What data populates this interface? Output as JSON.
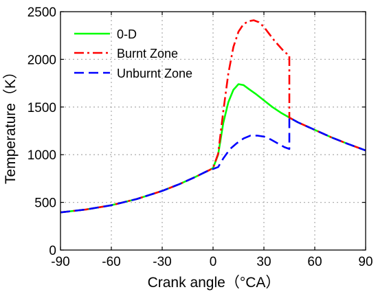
{
  "chart_data": {
    "type": "line",
    "title": "",
    "xlabel": "Crank angle（°CA）",
    "ylabel": "Temperature（K）",
    "xlim": [
      -90,
      90
    ],
    "ylim": [
      0,
      2500
    ],
    "xticks": [
      -90,
      -60,
      -30,
      0,
      30,
      60,
      90
    ],
    "yticks": [
      0,
      500,
      1000,
      1500,
      2000,
      2500
    ],
    "grid": true,
    "legend_position": "top-left",
    "series": [
      {
        "name": "0-D",
        "color": "#00ff00",
        "dash": "solid",
        "x": [
          -90,
          -75,
          -60,
          -45,
          -30,
          -20,
          -10,
          -5,
          -2,
          0,
          3,
          6,
          9,
          12,
          15,
          18,
          21,
          25,
          30,
          35,
          40,
          45,
          50,
          55,
          60,
          70,
          80,
          90
        ],
        "y": [
          395,
          425,
          470,
          535,
          620,
          690,
          770,
          815,
          840,
          860,
          1000,
          1330,
          1550,
          1680,
          1740,
          1730,
          1690,
          1640,
          1570,
          1500,
          1440,
          1390,
          1340,
          1300,
          1260,
          1180,
          1110,
          1045
        ]
      },
      {
        "name": "Burnt Zone",
        "color": "#ff0000",
        "dash": "dash-dot",
        "x": [
          -90,
          -75,
          -60,
          -45,
          -30,
          -20,
          -10,
          -5,
          -2,
          0,
          3,
          6,
          9,
          12,
          15,
          18,
          21,
          24,
          27,
          30,
          33,
          36,
          39,
          42,
          45,
          45,
          50,
          55,
          60,
          70,
          80,
          90
        ],
        "y": [
          395,
          425,
          470,
          535,
          620,
          690,
          770,
          815,
          840,
          860,
          1010,
          1450,
          1850,
          2130,
          2290,
          2370,
          2400,
          2410,
          2390,
          2340,
          2270,
          2200,
          2140,
          2080,
          2040,
          1390,
          1340,
          1300,
          1260,
          1180,
          1110,
          1045
        ]
      },
      {
        "name": "Unburnt Zone",
        "color": "#0000ff",
        "dash": "dashed",
        "x": [
          -90,
          -75,
          -60,
          -45,
          -30,
          -20,
          -10,
          -5,
          -2,
          0,
          3,
          6,
          10,
          14,
          18,
          22,
          26,
          30,
          34,
          38,
          42,
          45,
          45,
          50,
          55,
          60,
          70,
          80,
          90
        ],
        "y": [
          395,
          425,
          470,
          535,
          620,
          690,
          770,
          815,
          840,
          850,
          870,
          960,
          1060,
          1120,
          1170,
          1200,
          1200,
          1190,
          1160,
          1120,
          1080,
          1060,
          1390,
          1340,
          1300,
          1260,
          1180,
          1110,
          1045
        ]
      }
    ]
  }
}
